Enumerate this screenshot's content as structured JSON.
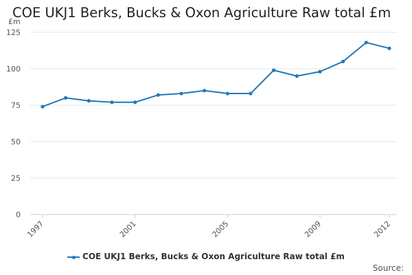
{
  "chart_data": {
    "type": "line",
    "title": "COE UKJ1 Berks, Bucks & Oxon Agriculture Raw total £m",
    "ylabel": "£m",
    "xlabel": "",
    "x": [
      1997,
      1998,
      1999,
      2000,
      2001,
      2002,
      2003,
      2004,
      2005,
      2006,
      2007,
      2008,
      2009,
      2010,
      2011,
      2012
    ],
    "x_tick_labels": [
      "1997",
      "2001",
      "2005",
      "2009",
      "2012"
    ],
    "y_tick_labels": [
      "0",
      "25",
      "50",
      "75",
      "100",
      "125"
    ],
    "ylim": [
      0,
      125
    ],
    "grid": true,
    "legend_position": "bottom",
    "series": [
      {
        "name": "COE UKJ1 Berks, Bucks & Oxon Agriculture Raw total £m",
        "color": "#1f7ab8",
        "values": [
          74,
          80,
          78,
          77,
          77,
          82,
          83,
          85,
          83,
          83,
          99,
          95,
          98,
          105,
          118,
          114
        ]
      }
    ]
  },
  "source_label": "Source:"
}
